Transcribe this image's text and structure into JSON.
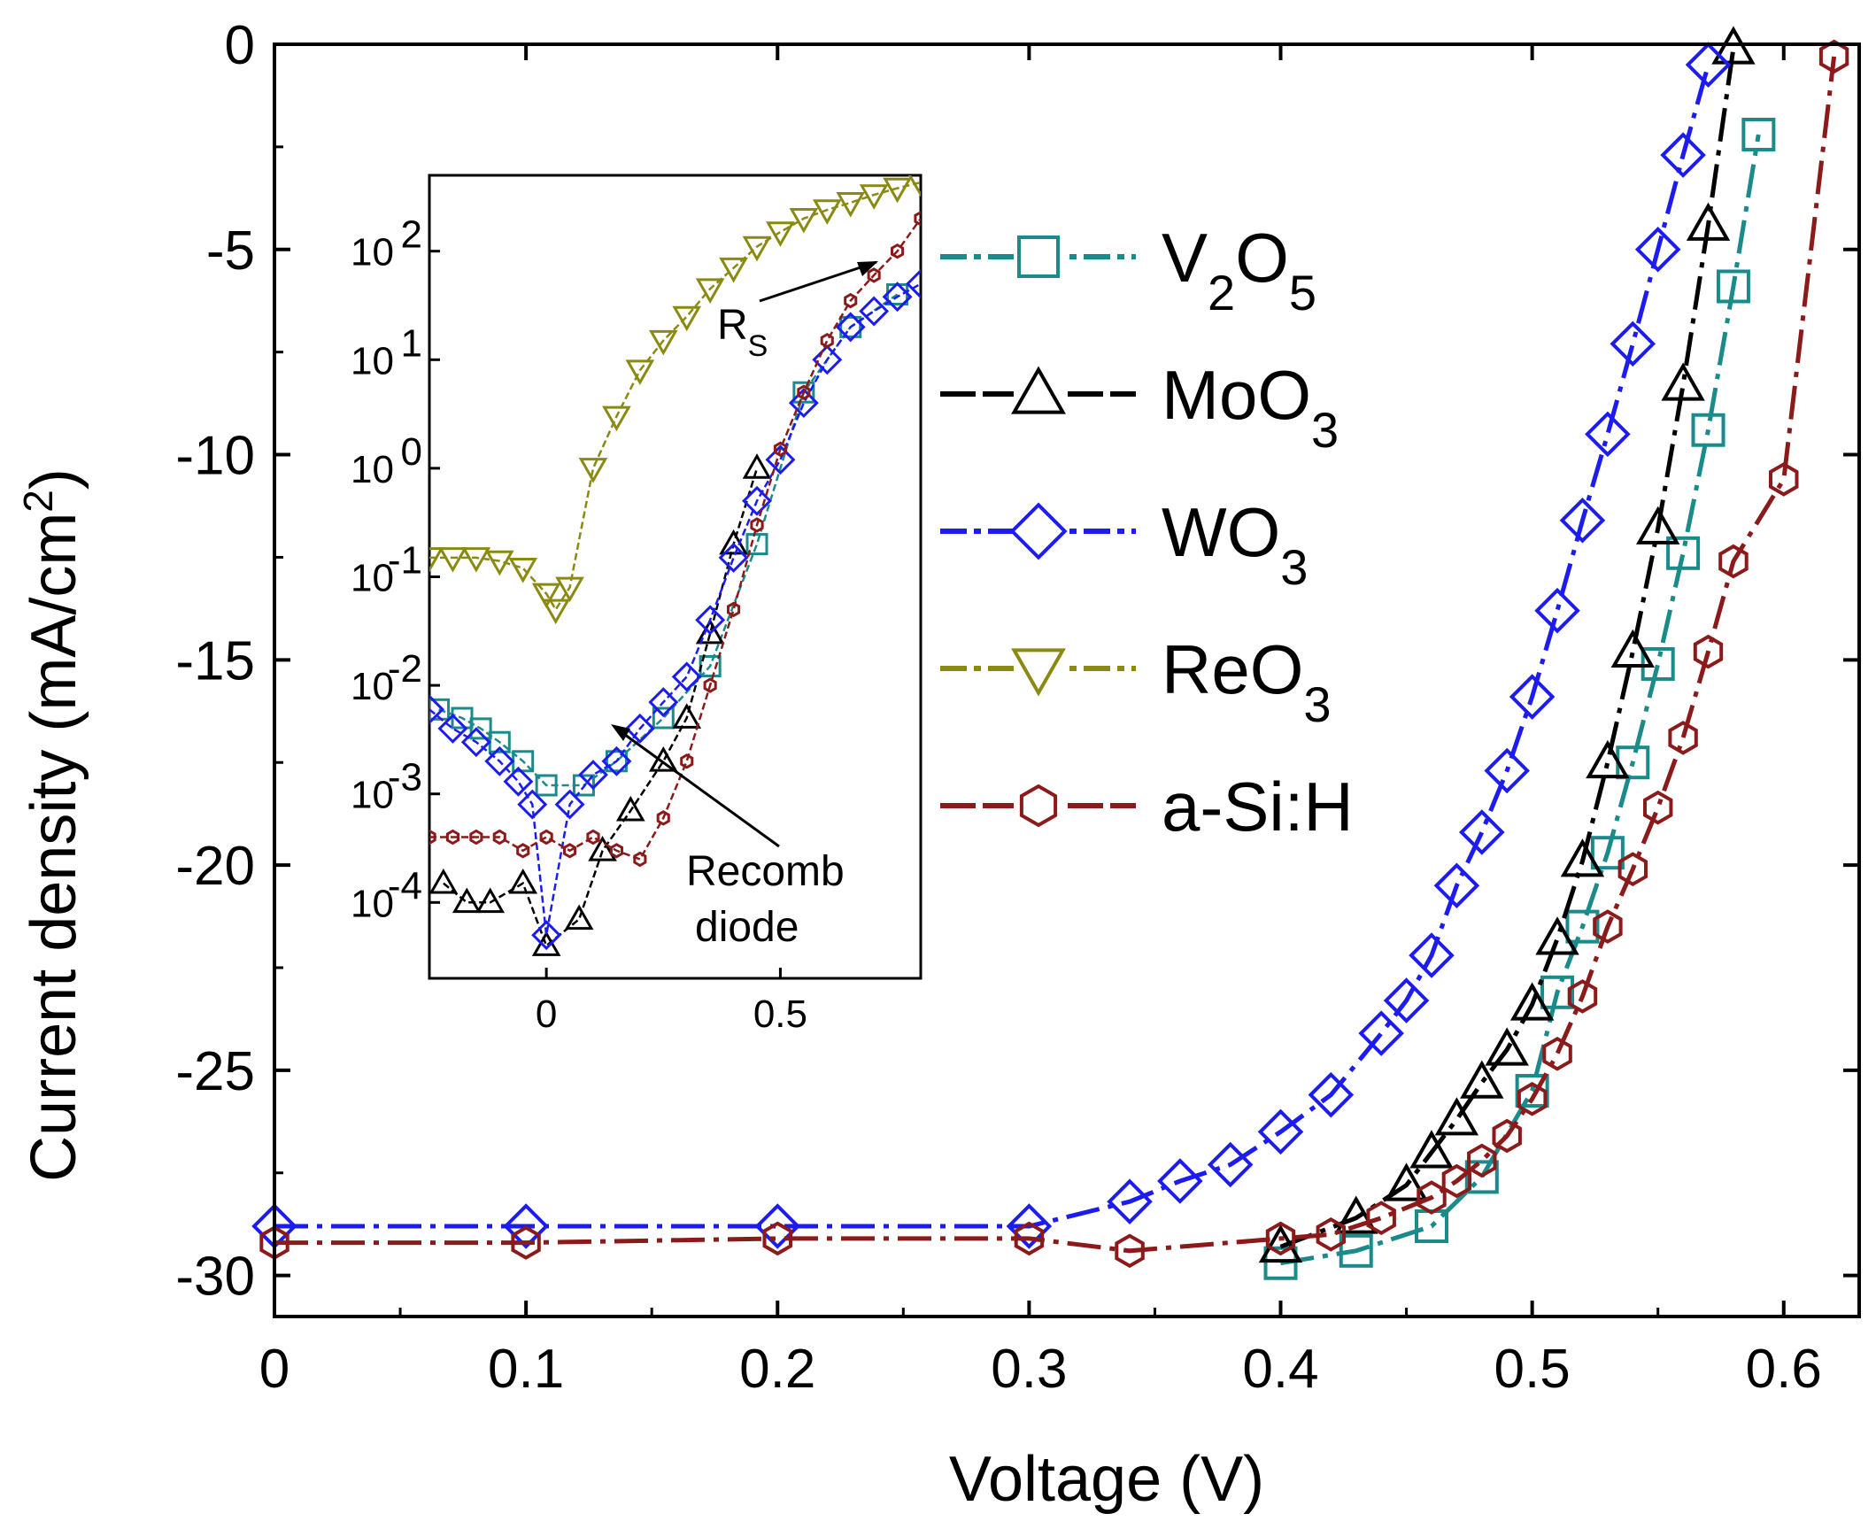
{
  "chart_data": [
    {
      "type": "line",
      "role": "main",
      "title": "",
      "xlabel": "Voltage (V)",
      "ylabel": "Current density (mA/cm²)",
      "ylabel_parts": {
        "main": "Current density (mA/cm",
        "sup": "2",
        "end": ")"
      },
      "xlim": [
        0,
        0.63
      ],
      "ylim": [
        -31,
        0
      ],
      "xticks": [
        0,
        0.1,
        0.2,
        0.3,
        0.4,
        0.5,
        0.6
      ],
      "xtick_labels": [
        "0",
        "0.1",
        "0.2",
        "0.3",
        "0.4",
        "0.5",
        "0.6"
      ],
      "yticks": [
        0,
        -5,
        -10,
        -15,
        -20,
        -25,
        -30
      ],
      "ytick_labels": [
        "0",
        "-5",
        "-10",
        "-15",
        "-20",
        "-25",
        "-30"
      ],
      "series": [
        {
          "name": "V2O5",
          "color": "#1a8a8a",
          "marker": "square",
          "x": [
            0.4,
            0.43,
            0.46,
            0.48,
            0.5,
            0.51,
            0.52,
            0.53,
            0.54,
            0.55,
            0.56,
            0.57,
            0.58,
            0.59
          ],
          "y": [
            -29.7,
            -29.4,
            -28.8,
            -27.6,
            -25.5,
            -23.1,
            -21.5,
            -19.7,
            -17.5,
            -15.1,
            -12.4,
            -9.4,
            -5.9,
            -2.2
          ]
        },
        {
          "name": "MoO3",
          "color": "#000000",
          "marker": "triangle-up",
          "x": [
            0.4,
            0.43,
            0.45,
            0.46,
            0.47,
            0.48,
            0.49,
            0.5,
            0.51,
            0.52,
            0.53,
            0.54,
            0.55,
            0.56,
            0.57,
            0.58
          ],
          "y": [
            -29.3,
            -28.6,
            -27.8,
            -27.0,
            -26.2,
            -25.3,
            -24.5,
            -23.4,
            -21.8,
            -19.9,
            -17.5,
            -14.8,
            -11.8,
            -8.3,
            -4.4,
            -0.1
          ]
        },
        {
          "name": "WO3",
          "color": "#1c1cf0",
          "marker": "diamond",
          "x": [
            0.0,
            0.1,
            0.2,
            0.3,
            0.34,
            0.36,
            0.38,
            0.4,
            0.42,
            0.44,
            0.45,
            0.46,
            0.47,
            0.48,
            0.49,
            0.5,
            0.51,
            0.52,
            0.53,
            0.54,
            0.55,
            0.56,
            0.57
          ],
          "y": [
            -28.8,
            -28.8,
            -28.8,
            -28.8,
            -28.2,
            -27.7,
            -27.3,
            -26.5,
            -25.6,
            -24.1,
            -23.3,
            -22.2,
            -20.5,
            -19.2,
            -17.7,
            -15.9,
            -13.8,
            -11.6,
            -9.5,
            -7.3,
            -5.0,
            -2.7,
            -0.5
          ]
        },
        {
          "name": "ReO3",
          "color": "#8a8a10",
          "marker": "triangle-down",
          "x": [],
          "y": []
        },
        {
          "name": "a-Si:H",
          "color": "#8b1a1a",
          "marker": "hexagon",
          "x": [
            0.0,
            0.1,
            0.2,
            0.3,
            0.34,
            0.4,
            0.42,
            0.44,
            0.46,
            0.47,
            0.48,
            0.49,
            0.5,
            0.51,
            0.52,
            0.53,
            0.54,
            0.55,
            0.56,
            0.57,
            0.58,
            0.6,
            0.62
          ],
          "y": [
            -29.2,
            -29.2,
            -29.1,
            -29.1,
            -29.4,
            -29.1,
            -29.0,
            -28.6,
            -28.1,
            -27.7,
            -27.2,
            -26.6,
            -25.7,
            -24.6,
            -23.2,
            -21.5,
            -20.1,
            -18.6,
            -16.9,
            -14.8,
            -12.6,
            -10.6,
            -0.3
          ]
        }
      ]
    },
    {
      "type": "line",
      "role": "inset",
      "yscale": "log",
      "xlim": [
        -0.25,
        0.8
      ],
      "ylim": [
        2e-05,
        500
      ],
      "xticks": [
        0,
        0.5
      ],
      "xtick_labels": [
        "0",
        "0.5"
      ],
      "yticks": [
        0.0001,
        0.001,
        0.01,
        0.1,
        1,
        10,
        100
      ],
      "ytick_labels": [
        {
          "base": "10",
          "exp": "-4"
        },
        {
          "base": "10",
          "exp": "-3"
        },
        {
          "base": "10",
          "exp": "-2"
        },
        {
          "base": "10",
          "exp": "-1"
        },
        {
          "base": "10",
          "exp": "0"
        },
        {
          "base": "10",
          "exp": "1"
        },
        {
          "base": "10",
          "exp": "2"
        }
      ],
      "series": [
        {
          "name": "V2O5",
          "color": "#1a8a8a",
          "marker": "square",
          "x": [
            -0.23,
            -0.18,
            -0.14,
            -0.1,
            -0.05,
            0.0,
            0.08,
            0.15,
            0.25,
            0.35,
            0.45,
            0.55,
            0.65,
            0.75
          ],
          "y": [
            0.006,
            0.005,
            0.004,
            0.003,
            0.002,
            0.0012,
            0.0012,
            0.002,
            0.005,
            0.015,
            0.2,
            5,
            20,
            40
          ]
        },
        {
          "name": "MoO3",
          "color": "#000000",
          "marker": "triangle-up",
          "x": [
            -0.22,
            -0.17,
            -0.12,
            -0.05,
            0.0,
            0.07,
            0.12,
            0.18,
            0.25,
            0.3,
            0.35,
            0.4,
            0.45
          ],
          "y": [
            0.00015,
            0.0001,
            0.0001,
            0.00015,
            4e-05,
            7e-05,
            0.0003,
            0.0007,
            0.002,
            0.005,
            0.03,
            0.2,
            1
          ]
        },
        {
          "name": "WO3",
          "color": "#1c1cf0",
          "marker": "diamond",
          "x": [
            -0.25,
            -0.2,
            -0.15,
            -0.1,
            -0.06,
            -0.03,
            0.0,
            0.05,
            0.1,
            0.15,
            0.2,
            0.25,
            0.3,
            0.35,
            0.4,
            0.45,
            0.5,
            0.55,
            0.6,
            0.65,
            0.7,
            0.75,
            0.8
          ],
          "y": [
            0.006,
            0.004,
            0.003,
            0.002,
            0.0013,
            0.0008,
            5e-05,
            0.0008,
            0.0015,
            0.002,
            0.004,
            0.007,
            0.012,
            0.04,
            0.15,
            0.5,
            1.2,
            4,
            10,
            20,
            28,
            38,
            50
          ]
        },
        {
          "name": "ReO3",
          "color": "#8a8a10",
          "marker": "triangle-down",
          "x": [
            -0.25,
            -0.2,
            -0.15,
            -0.1,
            -0.05,
            0.0,
            0.02,
            0.05,
            0.1,
            0.15,
            0.2,
            0.25,
            0.3,
            0.35,
            0.4,
            0.45,
            0.5,
            0.55,
            0.6,
            0.65,
            0.7,
            0.75,
            0.8
          ],
          "y": [
            0.15,
            0.15,
            0.15,
            0.14,
            0.12,
            0.07,
            0.05,
            0.08,
            1,
            3,
            8,
            15,
            25,
            45,
            70,
            110,
            150,
            200,
            240,
            280,
            330,
            380,
            430
          ]
        },
        {
          "name": "a-Si:H",
          "color": "#8b1a1a",
          "marker": "hexagon",
          "x": [
            -0.25,
            -0.2,
            -0.15,
            -0.1,
            -0.05,
            0.0,
            0.05,
            0.1,
            0.15,
            0.2,
            0.25,
            0.3,
            0.35,
            0.4,
            0.45,
            0.5,
            0.55,
            0.6,
            0.65,
            0.7,
            0.75,
            0.8
          ],
          "y": [
            0.0004,
            0.0004,
            0.0004,
            0.0004,
            0.0003,
            0.0004,
            0.0003,
            0.0004,
            0.0003,
            0.00025,
            0.0006,
            0.002,
            0.01,
            0.05,
            0.3,
            1.5,
            5,
            15,
            35,
            60,
            100,
            200
          ]
        }
      ],
      "annotations": [
        {
          "text_main": "R",
          "text_sub": "S"
        },
        {
          "text_line1": "Recomb",
          "text_line2": "diode"
        }
      ]
    }
  ],
  "legend": {
    "placement": "right-of-inset",
    "items": [
      {
        "name": "V2O5",
        "color": "#1a8a8a",
        "marker": "square",
        "parts": [
          {
            "t": "V"
          },
          {
            "t": "2",
            "sub": true
          },
          {
            "t": "O"
          },
          {
            "t": "5",
            "sub": true
          }
        ]
      },
      {
        "name": "MoO3",
        "color": "#000000",
        "marker": "triangle-up",
        "parts": [
          {
            "t": "MoO"
          },
          {
            "t": "3",
            "sub": true
          }
        ]
      },
      {
        "name": "WO3",
        "color": "#1c1cf0",
        "marker": "diamond",
        "parts": [
          {
            "t": "WO"
          },
          {
            "t": "3",
            "sub": true
          }
        ]
      },
      {
        "name": "ReO3",
        "color": "#8a8a10",
        "marker": "triangle-down",
        "parts": [
          {
            "t": "ReO"
          },
          {
            "t": "3",
            "sub": true
          }
        ]
      },
      {
        "name": "a-Si:H",
        "color": "#8b1a1a",
        "marker": "hexagon",
        "parts": [
          {
            "t": "a-Si:H"
          }
        ]
      }
    ]
  }
}
